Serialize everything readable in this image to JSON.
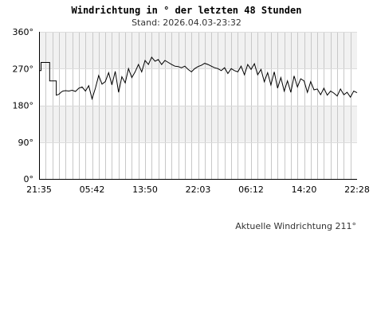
{
  "chart_data": {
    "type": "line",
    "title": "Windrichtung in ° der letzten 48 Stunden",
    "subtitle": "Stand: 2026.04.03-23:32",
    "ylim": [
      0,
      360
    ],
    "y_ticks": [
      "0°",
      "90°",
      "180°",
      "270°",
      "360°"
    ],
    "x_ticks": [
      "21:35",
      "05:42",
      "13:50",
      "22:03",
      "06:12",
      "14:20",
      "22:28"
    ],
    "grid": true,
    "footer": "Aktuelle Windrichtung 211°",
    "series": [
      {
        "x_hours": [
          0.0,
          0.3,
          0.3,
          1.6,
          1.6,
          2.6,
          2.6,
          3.0,
          3.3,
          3.6,
          4.0,
          4.5,
          5.0,
          5.5,
          6.0,
          6.5,
          7.0,
          7.5,
          8.0,
          8.5,
          9.0,
          9.5,
          10.0,
          10.5,
          11.0,
          11.5,
          12.0,
          12.5,
          13.0,
          13.5,
          14.0,
          14.5,
          15.0,
          15.5,
          16.0,
          16.5,
          17.0,
          17.5,
          18.0,
          18.5,
          19.0,
          19.5,
          20.0,
          20.5,
          21.0,
          21.5,
          22.0,
          22.5,
          23.0,
          23.5,
          24.0,
          24.5,
          25.0,
          25.5,
          26.0,
          26.5,
          27.0,
          27.5,
          28.0,
          28.5,
          29.0,
          29.5,
          30.0,
          30.5,
          31.0,
          31.5,
          32.0,
          32.5,
          33.0,
          33.5,
          34.0,
          34.5,
          35.0,
          35.5,
          36.0,
          36.5,
          37.0,
          37.5,
          38.0,
          38.5,
          39.0,
          39.5,
          40.0,
          40.5,
          41.0,
          41.5,
          42.0,
          42.5,
          43.0,
          43.5,
          44.0,
          44.5,
          45.0,
          45.5,
          46.0,
          46.5,
          47.0,
          47.5,
          48.0
        ],
        "values": [
          265,
          265,
          285,
          285,
          240,
          240,
          205,
          207,
          212,
          215,
          216,
          215,
          217,
          214,
          222,
          225,
          215,
          228,
          196,
          222,
          253,
          232,
          238,
          260,
          230,
          263,
          212,
          250,
          235,
          270,
          248,
          262,
          280,
          262,
          290,
          280,
          298,
          288,
          292,
          280,
          290,
          285,
          280,
          276,
          275,
          272,
          276,
          268,
          262,
          270,
          275,
          278,
          283,
          280,
          276,
          272,
          270,
          265,
          272,
          258,
          270,
          265,
          262,
          276,
          255,
          280,
          268,
          282,
          255,
          268,
          238,
          260,
          230,
          262,
          222,
          248,
          215,
          240,
          212,
          252,
          225,
          245,
          240,
          212,
          238,
          218,
          220,
          206,
          222,
          205,
          215,
          210,
          203,
          220,
          206,
          212,
          200,
          215,
          211
        ]
      }
    ]
  }
}
